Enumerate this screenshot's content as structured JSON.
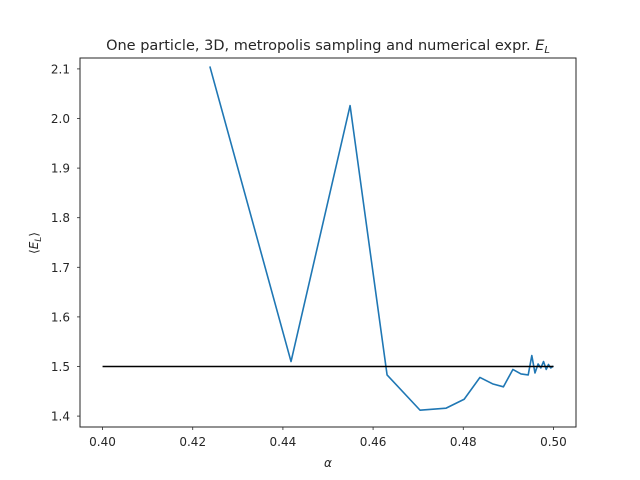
{
  "chart_data": {
    "type": "line",
    "title": "One particle, 3D, metropolis sampling and numerical expr. E_L",
    "xlabel": "α",
    "ylabel": "⟨E_L⟩",
    "xlim": [
      0.395,
      0.505
    ],
    "ylim": [
      1.378,
      2.122
    ],
    "x_ticks": [
      0.4,
      0.42,
      0.44,
      0.46,
      0.48,
      0.5
    ],
    "x_tick_labels": [
      "0.40",
      "0.42",
      "0.44",
      "0.46",
      "0.48",
      "0.50"
    ],
    "y_ticks": [
      1.4,
      1.5,
      1.6,
      1.7,
      1.8,
      1.9,
      2.0,
      2.1
    ],
    "y_tick_labels": [
      "1.4",
      "1.5",
      "1.6",
      "1.7",
      "1.8",
      "1.9",
      "2.0",
      "2.1"
    ],
    "grid": false,
    "series": [
      {
        "color": "#1f77b4",
        "x": [
          0.4238,
          0.4418,
          0.4549,
          0.4631,
          0.4704,
          0.4762,
          0.4802,
          0.4837,
          0.4865,
          0.4889,
          0.491,
          0.4928,
          0.4944,
          0.4952,
          0.4959,
          0.4966,
          0.4972,
          0.4978,
          0.4984,
          0.4989,
          0.4994,
          0.5
        ],
        "y": [
          2.105,
          1.51,
          2.026,
          1.483,
          1.412,
          1.416,
          1.434,
          1.478,
          1.465,
          1.459,
          1.494,
          1.485,
          1.483,
          1.522,
          1.487,
          1.505,
          1.497,
          1.51,
          1.494,
          1.504,
          1.497,
          1.501
        ]
      },
      {
        "color": "#000000",
        "x": [
          0.4,
          0.5
        ],
        "y": [
          1.5,
          1.5
        ]
      }
    ]
  }
}
